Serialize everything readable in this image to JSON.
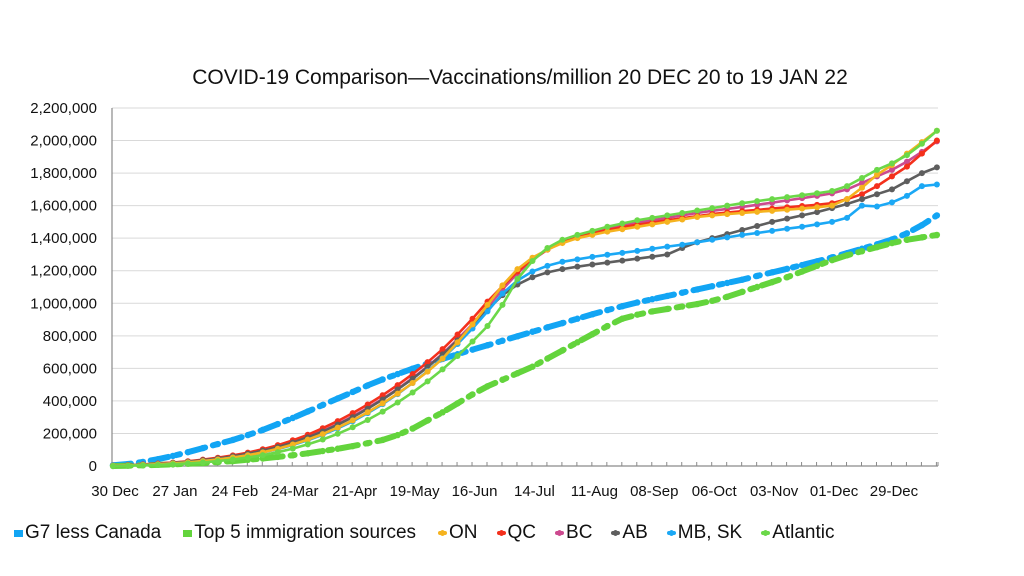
{
  "chart_data": {
    "type": "line",
    "title": "COVID-19 Comparison—Vaccinations/million 20 DEC 20 to 19 JAN 22",
    "xlabel": "",
    "ylabel": "",
    "ylim": [
      0,
      2200000
    ],
    "yticks": [
      0,
      200000,
      400000,
      600000,
      800000,
      1000000,
      1200000,
      1400000,
      1600000,
      1800000,
      2000000,
      2200000
    ],
    "ytick_labels": [
      "0",
      "200,000",
      "400,000",
      "600,000",
      "800,000",
      "1,000,000",
      "1,200,000",
      "1,400,000",
      "1,600,000",
      "1,800,000",
      "2,000,000",
      "2,200,000"
    ],
    "xtick_labels": [
      "30 Dec",
      "27 Jan",
      "24 Feb",
      "24-Mar",
      "21-Apr",
      "19-May",
      "16-Jun",
      "14-Jul",
      "11-Aug",
      "08-Sep",
      "06-Oct",
      "03-Nov",
      "01-Dec",
      "29-Dec"
    ],
    "xtick_every": 4,
    "n_points": 56,
    "x_unit": "weeks from 30 Dec 2020",
    "grid": "horizontal",
    "legend_position": "bottom",
    "series": [
      {
        "name": "G7 less Canada",
        "color": "#12A5F4",
        "style": "dash-dot",
        "marker": "square",
        "values": [
          5000,
          12000,
          25000,
          42000,
          62000,
          85000,
          110000,
          135000,
          160000,
          190000,
          222000,
          258000,
          295000,
          335000,
          375000,
          415000,
          455000,
          495000,
          532000,
          565000,
          598000,
          630000,
          658000,
          687000,
          715000,
          742000,
          770000,
          797000,
          825000,
          852000,
          878000,
          905000,
          932000,
          958000,
          982000,
          1005000,
          1025000,
          1045000,
          1065000,
          1085000,
          1105000,
          1125000,
          1145000,
          1168000,
          1190000,
          1212000,
          1235000,
          1258000,
          1282000,
          1308000,
          1335000,
          1362000,
          1392000,
          1430000,
          1480000,
          1540000
        ]
      },
      {
        "name": "Top 5 immigration sources",
        "color": "#63D43C",
        "style": "dash-dot",
        "marker": "square",
        "values": [
          0,
          2000,
          4000,
          7000,
          10000,
          14000,
          18000,
          24000,
          30000,
          38000,
          46000,
          56000,
          66000,
          78000,
          92000,
          106000,
          122000,
          140000,
          160000,
          190000,
          230000,
          280000,
          330000,
          385000,
          440000,
          490000,
          530000,
          570000,
          610000,
          660000,
          710000,
          760000,
          810000,
          860000,
          905000,
          930000,
          950000,
          965000,
          980000,
          995000,
          1015000,
          1040000,
          1070000,
          1100000,
          1130000,
          1160000,
          1195000,
          1230000,
          1265000,
          1295000,
          1320000,
          1345000,
          1370000,
          1390000,
          1405000,
          1420000
        ]
      },
      {
        "name": "ON",
        "color": "#F5B31F",
        "style": "solid",
        "marker": "dot",
        "values": [
          2000,
          4000,
          7000,
          11000,
          16000,
          22000,
          30000,
          40000,
          52000,
          66000,
          84000,
          106000,
          132000,
          162000,
          196000,
          236000,
          280000,
          330000,
          385000,
          445000,
          510000,
          580000,
          660000,
          760000,
          870000,
          990000,
          1110000,
          1210000,
          1280000,
          1330000,
          1370000,
          1400000,
          1420000,
          1440000,
          1455000,
          1470000,
          1485000,
          1500000,
          1515000,
          1530000,
          1540000,
          1548000,
          1555000,
          1562000,
          1568000,
          1575000,
          1582000,
          1590000,
          1600000,
          1640000,
          1710000,
          1790000,
          1850000,
          1920000,
          1990000,
          2060000
        ]
      },
      {
        "name": "QC",
        "color": "#F4301C",
        "style": "solid",
        "marker": "dot",
        "values": [
          3000,
          6000,
          10000,
          15000,
          21000,
          29000,
          39000,
          51000,
          65000,
          82000,
          103000,
          128000,
          158000,
          192000,
          232000,
          276000,
          325000,
          378000,
          435000,
          497000,
          565000,
          638000,
          718000,
          808000,
          905000,
          1010000,
          1105000,
          1195000,
          1270000,
          1330000,
          1375000,
          1405000,
          1430000,
          1450000,
          1468000,
          1482000,
          1495000,
          1510000,
          1522000,
          1535000,
          1548000,
          1558000,
          1566000,
          1574000,
          1582000,
          1590000,
          1598000,
          1605000,
          1615000,
          1640000,
          1670000,
          1720000,
          1780000,
          1840000,
          1920000,
          2000000
        ]
      },
      {
        "name": "BC",
        "color": "#CC4A8F",
        "style": "solid",
        "marker": "dot",
        "values": [
          2000,
          5000,
          9000,
          14000,
          20000,
          27000,
          36000,
          47000,
          60000,
          76000,
          95000,
          118000,
          146000,
          178000,
          215000,
          258000,
          305000,
          357000,
          413000,
          474000,
          540000,
          612000,
          690000,
          778000,
          872000,
          975000,
          1085000,
          1185000,
          1265000,
          1330000,
          1378000,
          1410000,
          1438000,
          1460000,
          1478000,
          1495000,
          1510000,
          1525000,
          1540000,
          1555000,
          1568000,
          1580000,
          1592000,
          1605000,
          1618000,
          1632000,
          1646000,
          1660000,
          1675000,
          1700000,
          1740000,
          1780000,
          1820000,
          1870000,
          1930000,
          1995000
        ]
      },
      {
        "name": "AB",
        "color": "#5E5E5E",
        "style": "solid",
        "marker": "dot",
        "values": [
          2000,
          5000,
          8000,
          13000,
          19000,
          26000,
          35000,
          46000,
          59000,
          75000,
          94000,
          117000,
          144000,
          176000,
          212000,
          254000,
          300000,
          352000,
          408000,
          470000,
          536000,
          608000,
          686000,
          772000,
          862000,
          960000,
          1050000,
          1115000,
          1160000,
          1190000,
          1210000,
          1225000,
          1238000,
          1250000,
          1262000,
          1274000,
          1286000,
          1300000,
          1340000,
          1375000,
          1400000,
          1425000,
          1450000,
          1475000,
          1500000,
          1520000,
          1540000,
          1560000,
          1585000,
          1610000,
          1640000,
          1670000,
          1700000,
          1750000,
          1800000,
          1835000
        ]
      },
      {
        "name": "MB, SK",
        "color": "#1BA8F5",
        "style": "solid",
        "marker": "dot",
        "values": [
          2000,
          4000,
          7000,
          11000,
          16000,
          22000,
          30000,
          40000,
          52000,
          66000,
          83000,
          104000,
          129000,
          158000,
          192000,
          231000,
          275000,
          325000,
          380000,
          442000,
          510000,
          583000,
          662000,
          750000,
          845000,
          950000,
          1060000,
          1140000,
          1195000,
          1230000,
          1255000,
          1270000,
          1285000,
          1298000,
          1310000,
          1322000,
          1335000,
          1348000,
          1360000,
          1375000,
          1390000,
          1405000,
          1420000,
          1432000,
          1445000,
          1458000,
          1470000,
          1485000,
          1500000,
          1525000,
          1600000,
          1595000,
          1620000,
          1660000,
          1720000,
          1730000
        ]
      },
      {
        "name": "Atlantic",
        "color": "#6BD849",
        "style": "solid",
        "marker": "dot",
        "values": [
          0,
          2000,
          4000,
          7000,
          11000,
          16000,
          22000,
          30000,
          40000,
          52000,
          67000,
          85000,
          107000,
          133000,
          163000,
          198000,
          238000,
          283000,
          334000,
          390000,
          452000,
          520000,
          594000,
          676000,
          765000,
          860000,
          990000,
          1150000,
          1260000,
          1340000,
          1390000,
          1420000,
          1445000,
          1470000,
          1490000,
          1510000,
          1525000,
          1540000,
          1555000,
          1570000,
          1585000,
          1600000,
          1615000,
          1628000,
          1640000,
          1652000,
          1664000,
          1676000,
          1690000,
          1720000,
          1770000,
          1820000,
          1860000,
          1910000,
          1980000,
          2060000
        ]
      }
    ]
  }
}
